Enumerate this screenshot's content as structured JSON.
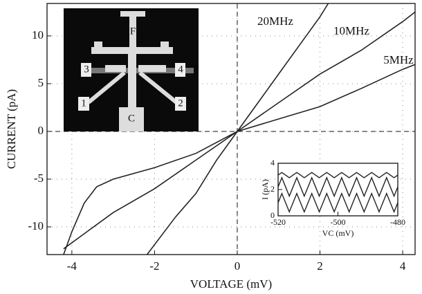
{
  "chart_data": [
    {
      "type": "line",
      "xlabel": "VOLTAGE (mV)",
      "ylabel": "CURRENT (pA)",
      "xlim": [
        -4.6,
        4.3
      ],
      "ylim": [
        -12.9,
        13.4
      ],
      "xticks": [
        -4,
        -2,
        0,
        2,
        4
      ],
      "yticks": [
        -10,
        -5,
        0,
        5,
        10
      ],
      "grid": true,
      "zero_lines": true,
      "series": [
        {
          "name": "20MHz",
          "color": "#222",
          "x": [
            -2.2,
            -1.5,
            -1,
            -0.5,
            0,
            0.5,
            1,
            1.5,
            2,
            2.2
          ],
          "values": [
            -13,
            -9,
            -6.5,
            -3,
            0,
            3,
            6,
            9,
            12,
            13.4
          ]
        },
        {
          "name": "10MHz",
          "color": "#222",
          "x": [
            -4.2,
            -3,
            -2,
            -1,
            0,
            1,
            2,
            3,
            4,
            4.3
          ],
          "values": [
            -12.3,
            -8.5,
            -6,
            -3,
            0,
            3,
            6,
            8.5,
            11.5,
            12.5
          ]
        },
        {
          "name": "5MHz",
          "color": "#222",
          "x": [
            -4.2,
            -4,
            -3.7,
            -3.4,
            -3,
            -2,
            -1,
            0,
            1,
            2,
            3,
            4,
            4.3
          ],
          "values": [
            -12.9,
            -10.5,
            -7.5,
            -5.8,
            -5,
            -3.8,
            -2.3,
            0,
            1.3,
            2.6,
            4.5,
            6.5,
            7
          ]
        }
      ]
    },
    {
      "type": "line",
      "xlabel": "VC (mV)",
      "ylabel": "I (pA)",
      "xlim": [
        -520,
        -480
      ],
      "ylim": [
        0,
        4
      ],
      "xticks": [
        -520,
        -500,
        -480
      ],
      "yticks": [
        0,
        2,
        4
      ],
      "x": [
        -520,
        -518.75,
        -517.5,
        -516.25,
        -515,
        -513.75,
        -512.5,
        -511.25,
        -510,
        -508.75,
        -507.5,
        -506.25,
        -505,
        -503.75,
        -502.5,
        -501.25,
        -500,
        -498.75,
        -497.5,
        -496.25,
        -495,
        -493.75,
        -492.5,
        -491.25,
        -490,
        -488.75,
        -487.5,
        -486.25,
        -485,
        -483.75,
        -482.5,
        -481.25,
        -480
      ],
      "series": [
        {
          "name": null,
          "color": "#222",
          "values": [
            3.1,
            3.3,
            3.1,
            2.9,
            3.1,
            3.3,
            3.1,
            2.9,
            3.1,
            3.3,
            3.1,
            2.9,
            3.1,
            3.3,
            3.1,
            2.9,
            3.1,
            3.3,
            3.1,
            2.9,
            3.1,
            3.3,
            3.1,
            2.9,
            3.1,
            3.3,
            3.1,
            2.9,
            3.1,
            3.3,
            3.1,
            2.9,
            3.1
          ]
        },
        {
          "name": null,
          "color": "#222",
          "values": [
            2.2,
            2.9,
            2.2,
            1.5,
            2.2,
            2.9,
            2.2,
            1.5,
            2.2,
            2.9,
            2.2,
            1.5,
            2.2,
            2.9,
            2.2,
            1.5,
            2.2,
            2.9,
            2.2,
            1.5,
            2.2,
            2.9,
            2.2,
            1.5,
            2.2,
            2.9,
            2.2,
            1.5,
            2.2,
            2.9,
            2.2,
            1.5,
            2.2
          ]
        },
        {
          "name": null,
          "color": "#222",
          "values": [
            1.0,
            1.7,
            1.0,
            0.3,
            1.0,
            1.7,
            1.0,
            0.3,
            1.0,
            1.7,
            1.0,
            0.3,
            1.0,
            1.7,
            1.0,
            0.3,
            1.0,
            1.7,
            1.0,
            0.3,
            1.0,
            1.7,
            1.0,
            0.3,
            1.0,
            1.7,
            1.0,
            0.3,
            1.0,
            1.7,
            1.0,
            0.3,
            1.0
          ]
        }
      ]
    }
  ],
  "inset_image": {
    "labels": [
      "F",
      "3",
      "4",
      "1",
      "2",
      "C"
    ]
  }
}
